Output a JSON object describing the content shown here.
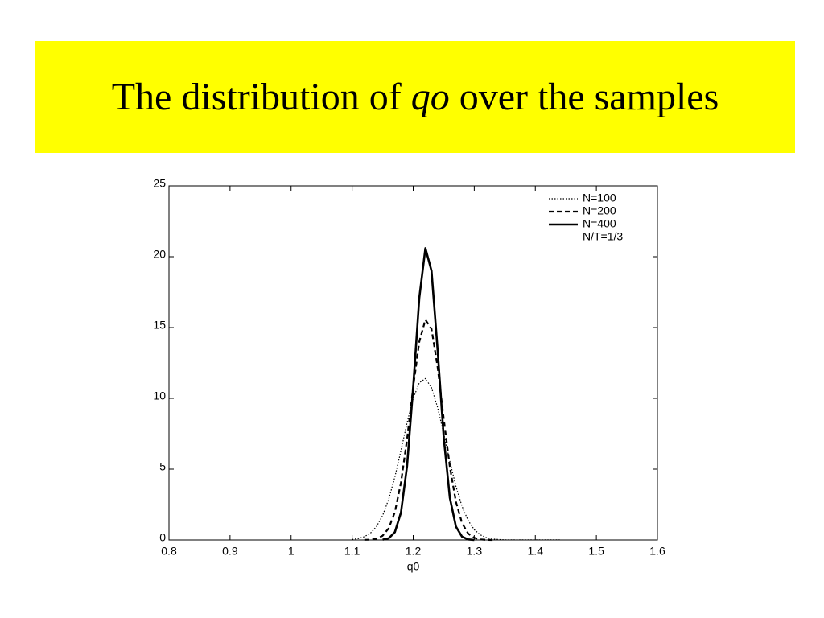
{
  "chart_data": {
    "type": "line",
    "title": [
      "The distribution of ",
      "qo",
      " over the samples"
    ],
    "xlabel": "q0",
    "annotation": "N/T=1/3",
    "xlim": [
      0.8,
      1.6
    ],
    "xticks": [
      0.8,
      0.9,
      1,
      1.1,
      1.2,
      1.3,
      1.4,
      1.5,
      1.6
    ],
    "ylim": [
      0,
      25
    ],
    "yticks": [
      0,
      5,
      10,
      15,
      20,
      25
    ],
    "legend": "upper right",
    "x": [
      1.1,
      1.11,
      1.12,
      1.13,
      1.14,
      1.15,
      1.16,
      1.17,
      1.18,
      1.19,
      1.2,
      1.21,
      1.22,
      1.23,
      1.24,
      1.25,
      1.26,
      1.27,
      1.28,
      1.29,
      1.3,
      1.31,
      1.32,
      1.33,
      1.34,
      1.35,
      1.36,
      1.37,
      1.38,
      1.39,
      1.4,
      1.41,
      1.42,
      1.43,
      1.44,
      1.45
    ],
    "series": [
      {
        "name": "N=100",
        "color": "#000000",
        "dash": "dotted",
        "width": 1.2,
        "values": [
          0.04,
          0.1,
          0.23,
          0.48,
          0.95,
          1.73,
          2.89,
          4.45,
          6.32,
          8.28,
          9.99,
          11.1,
          11.4,
          10.75,
          9.35,
          7.5,
          5.55,
          3.78,
          2.37,
          1.37,
          0.73,
          0.36,
          0.16,
          0.07,
          0.03,
          0.01,
          0.01,
          0.01,
          0.01,
          0.01,
          0.01,
          0.01,
          0.01,
          0.01,
          0.01,
          null
        ]
      },
      {
        "name": "N=200",
        "color": "#000000",
        "dash": "dashed",
        "width": 2.2,
        "values": [
          null,
          null,
          0.01,
          0.02,
          0.09,
          0.3,
          0.83,
          1.97,
          4.05,
          7.13,
          10.8,
          14.0,
          15.55,
          14.9,
          12.2,
          8.56,
          5.17,
          2.69,
          1.19,
          0.45,
          0.15,
          0.04,
          0.01,
          0,
          null,
          null,
          null,
          null,
          null,
          null,
          null,
          null,
          null,
          null,
          null,
          null
        ]
      },
      {
        "name": "N=400",
        "color": "#000000",
        "dash": "solid",
        "width": 2.6,
        "values": [
          null,
          null,
          null,
          null,
          null,
          0.02,
          0.12,
          0.55,
          1.94,
          5.24,
          10.8,
          17.1,
          20.6,
          19.0,
          13.4,
          7.23,
          2.98,
          0.94,
          0.23,
          0.04,
          0,
          null,
          null,
          null,
          null,
          null,
          null,
          null,
          null,
          null,
          null,
          null,
          null,
          null,
          null,
          null
        ]
      }
    ]
  }
}
